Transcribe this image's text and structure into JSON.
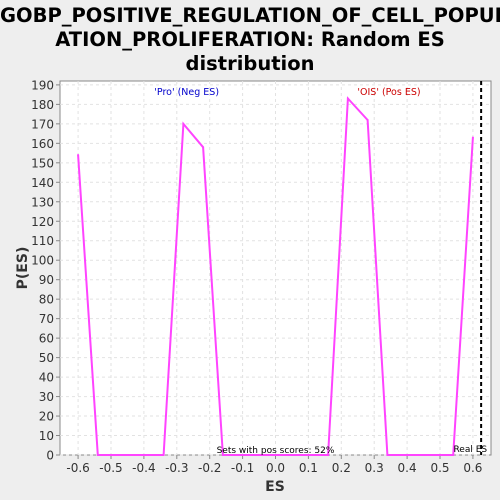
{
  "chart_data": {
    "type": "line",
    "title_lines": [
      "GOBP_POSITIVE_REGULATION_OF_CELL_POPUL",
      "ATION_PROLIFERATION: Random ES",
      "distribution"
    ],
    "xlabel": "ES",
    "ylabel": "P(ES)",
    "xlim": [
      -0.655,
      0.655
    ],
    "ylim": [
      0,
      192
    ],
    "x_ticks": [
      "-0.6",
      "-0.5",
      "-0.4",
      "-0.3",
      "-0.2",
      "-0.1",
      "0.0",
      "0.1",
      "0.2",
      "0.3",
      "0.4",
      "0.5",
      "0.6"
    ],
    "x_tick_values": [
      -0.6,
      -0.5,
      -0.4,
      -0.3,
      -0.2,
      -0.1,
      0.0,
      0.1,
      0.2,
      0.3,
      0.4,
      0.5,
      0.6
    ],
    "y_ticks": [
      0,
      10,
      20,
      30,
      40,
      50,
      60,
      70,
      80,
      90,
      100,
      110,
      120,
      130,
      140,
      150,
      160,
      170,
      180,
      190
    ],
    "grid": true,
    "series": [
      {
        "color": "#ff44ff",
        "x": [
          -0.6,
          -0.54,
          -0.34,
          -0.28,
          -0.22,
          -0.16,
          0.16,
          0.22,
          0.28,
          0.34,
          0.54,
          0.6
        ],
        "y": [
          154,
          0,
          0,
          170,
          158,
          0,
          0,
          183,
          172,
          0,
          0,
          163
        ]
      }
    ],
    "real_es": {
      "value": 0.625,
      "label": "Real ES",
      "color": "#000000",
      "style": "dashed"
    },
    "annotations": {
      "neg": {
        "text": "'Pro' (Neg ES)",
        "color": "#0000cc"
      },
      "pos": {
        "text": "'OIS' (Pos ES)",
        "color": "#cc0000"
      },
      "pct": {
        "text": "Sets with pos scores: 52%",
        "color": "#000000"
      }
    }
  }
}
